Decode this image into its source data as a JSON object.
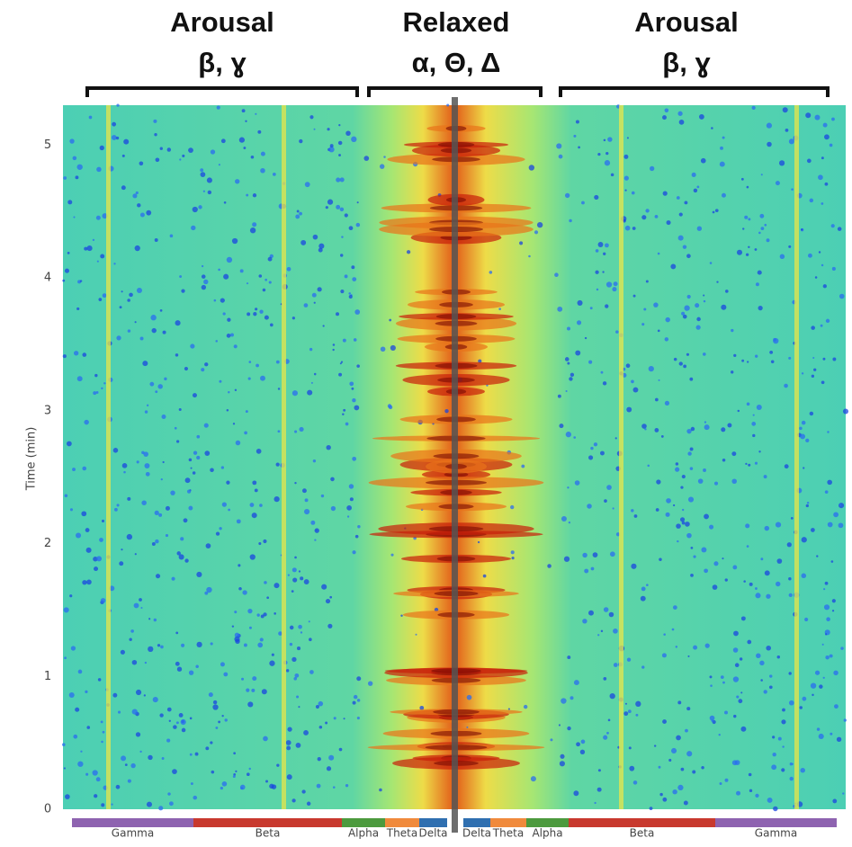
{
  "chart_data": {
    "type": "spectrogram",
    "annotations": [
      {
        "label": "Arousal",
        "bands": "β, ɣ"
      },
      {
        "label": "Relaxed",
        "bands": "α, Θ, Δ"
      },
      {
        "label": "Arousal",
        "bands": "β, ɣ"
      }
    ],
    "ylabel": "Time (min)",
    "ylim": [
      0,
      5.3
    ],
    "yticks": [
      0,
      1,
      2,
      3,
      4,
      5
    ],
    "bands": [
      {
        "name": "Gamma",
        "color": "#8e63b0"
      },
      {
        "name": "Beta",
        "color": "#c8392e"
      },
      {
        "name": "Alpha",
        "color": "#4c9a3e"
      },
      {
        "name": "Theta",
        "color": "#f08a3c"
      },
      {
        "name": "Delta",
        "color": "#2f6fb0"
      },
      {
        "name": "Delta",
        "color": "#2f6fb0"
      },
      {
        "name": "Theta",
        "color": "#f08a3c"
      },
      {
        "name": "Alpha",
        "color": "#4c9a3e"
      },
      {
        "name": "Beta",
        "color": "#c8392e"
      },
      {
        "name": "Gamma",
        "color": "#8e63b0"
      }
    ]
  }
}
